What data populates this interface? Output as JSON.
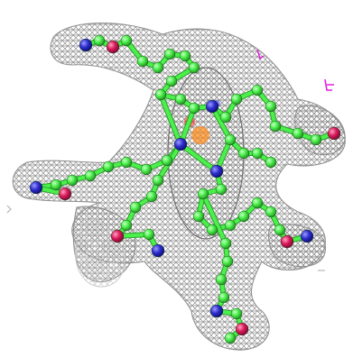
{
  "scene": {
    "background": "#ffffff",
    "colors": {
      "mesh": "#8c8c8c",
      "mesh_light": "#c8c8c8",
      "carbon": "#4cf04c",
      "carbon_dark": "#2aa02a",
      "nitrogen": "#2c2ccc",
      "oxygen": "#d8185a",
      "magenta_fragment": "#e020e0",
      "core_orange": "#ff8a1a",
      "core_red": "#ff3030",
      "core_blue": "#5050ff"
    },
    "icons": [
      "electron-density-mesh",
      "ball-and-stick-molecule"
    ]
  }
}
